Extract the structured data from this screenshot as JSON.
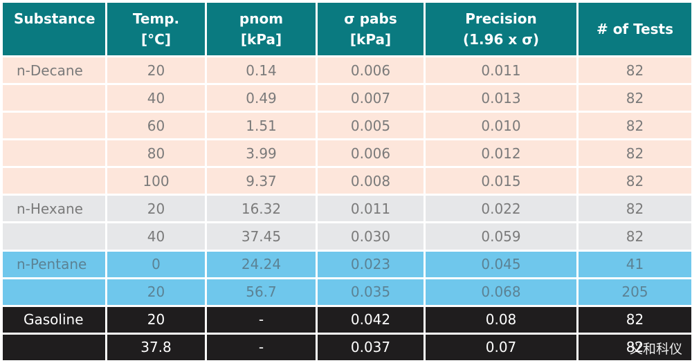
{
  "table": {
    "headers": [
      {
        "line1": "Substance",
        "line2": ""
      },
      {
        "line1": "Temp.",
        "line2": "[°C]"
      },
      {
        "line1": "pnom",
        "line2": "[kPa]"
      },
      {
        "line1": "σ pabs",
        "line2": "[kPa]"
      },
      {
        "line1": "Precision",
        "line2": "(1.96 x σ)"
      },
      {
        "line1": "# of Tests",
        "line2": ""
      }
    ],
    "rows": [
      {
        "group": "peach",
        "cells": [
          "n-Decane",
          "20",
          "0.14",
          "0.006",
          "0.011",
          "82"
        ]
      },
      {
        "group": "peach",
        "cells": [
          "",
          "40",
          "0.49",
          "0.007",
          "0.013",
          "82"
        ]
      },
      {
        "group": "peach",
        "cells": [
          "",
          "60",
          "1.51",
          "0.005",
          "0.010",
          "82"
        ]
      },
      {
        "group": "peach",
        "cells": [
          "",
          "80",
          "3.99",
          "0.006",
          "0.012",
          "82"
        ]
      },
      {
        "group": "peach",
        "cells": [
          "",
          "100",
          "9.37",
          "0.008",
          "0.015",
          "82"
        ]
      },
      {
        "group": "grey",
        "cells": [
          "n-Hexane",
          "20",
          "16.32",
          "0.011",
          "0.022",
          "82"
        ]
      },
      {
        "group": "grey",
        "cells": [
          "",
          "40",
          "37.45",
          "0.030",
          "0.059",
          "82"
        ]
      },
      {
        "group": "blue",
        "cells": [
          "n-Pentane",
          "0",
          "24.24",
          "0.023",
          "0.045",
          "41"
        ]
      },
      {
        "group": "blue",
        "cells": [
          "",
          "20",
          "56.7",
          "0.035",
          "0.068",
          "205"
        ]
      },
      {
        "group": "black",
        "cells": [
          "Gasoline",
          "20",
          "-",
          "0.042",
          "0.08",
          "82"
        ]
      },
      {
        "group": "black",
        "cells": [
          "",
          "37.8",
          "-",
          "0.037",
          "0.07",
          "82"
        ]
      }
    ]
  },
  "watermark": "义和科仪",
  "colors": {
    "header": "#0a7a80",
    "peach": "#fde6db",
    "grey": "#e6e7e9",
    "blue": "#6fc7ec",
    "black": "#1f1d1e"
  }
}
